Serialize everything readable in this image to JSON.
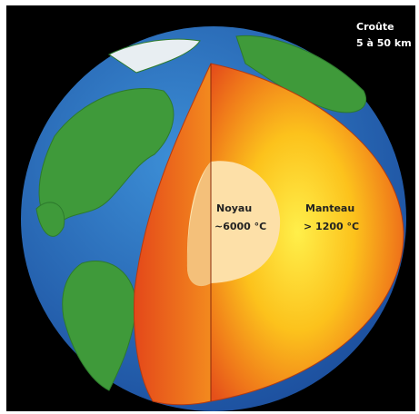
{
  "crust": {
    "label": "Croûte",
    "depth": "5 à 50 km"
  },
  "core": {
    "label": "Noyau",
    "temperature": "~6000 °C"
  },
  "mantle": {
    "label": "Manteau",
    "temperature": "> 1200 °C"
  }
}
